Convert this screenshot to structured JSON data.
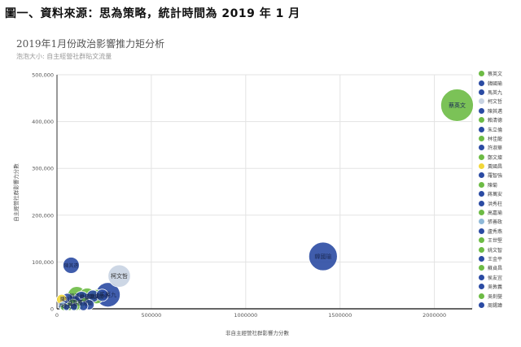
{
  "page_heading": "圖一、資料來源：思為策略，統計時間為 2019 年 1 月",
  "chart_data": {
    "type": "scatter",
    "title": "2019年1月份政治影響推力矩分析",
    "subtitle": "泡泡大小: 自主經營社群貼文流量",
    "xlabel": "非自主經營社群影響力分數",
    "ylabel": "自主經營社群影響力分數",
    "xlim": [
      0,
      2200000
    ],
    "ylim": [
      0,
      500000
    ],
    "xticks": [
      0,
      500000,
      1000000,
      1500000,
      2000000
    ],
    "xtick_labels": [
      "0",
      "500000",
      "1000000",
      "1500000",
      "2000000"
    ],
    "yticks": [
      0,
      100000,
      200000,
      300000,
      400000,
      500000
    ],
    "ytick_labels": [
      "0",
      "100,000",
      "200,000",
      "300,000",
      "400,000",
      "500,000"
    ],
    "grid": true,
    "legend_position": "right",
    "series": [
      {
        "name": "蔡英文",
        "color": "#6dbb45",
        "x": 2120000,
        "y": 435000,
        "size": 32,
        "label": "蔡英文"
      },
      {
        "name": "韓國瑜",
        "color": "#2b4ba3",
        "x": 1410000,
        "y": 112000,
        "size": 28,
        "label": "韓國瑜"
      },
      {
        "name": "馬英九",
        "color": "#2b4ba3",
        "x": 270000,
        "y": 30000,
        "size": 24,
        "label": "馬英九"
      },
      {
        "name": "柯文哲",
        "color": "#c8d3e2",
        "x": 330000,
        "y": 70000,
        "size": 22,
        "label": "柯文哲"
      },
      {
        "name": "陳其邁",
        "color": "#2b4ba3",
        "x": 75000,
        "y": 93000,
        "size": 16,
        "label": "陳其邁"
      },
      {
        "name": "賴清德",
        "color": "#6dbb45",
        "x": 105000,
        "y": 28000,
        "size": 18,
        "label": "賴清德"
      },
      {
        "name": "朱立倫",
        "color": "#2b4ba3",
        "x": 130000,
        "y": 22000,
        "size": 14,
        "label": "朱立倫"
      },
      {
        "name": "林佳龍",
        "color": "#6dbb45",
        "x": 160000,
        "y": 27000,
        "size": 16,
        "label": "林佳龍"
      },
      {
        "name": "許淑華",
        "color": "#2b4ba3",
        "x": 95000,
        "y": 15000,
        "size": 12,
        "label": "許淑華"
      },
      {
        "name": "鄭文燦",
        "color": "#6dbb45",
        "x": 210000,
        "y": 26000,
        "size": 14,
        "label": "鄭文燦"
      },
      {
        "name": "黃國昌",
        "color": "#f2d73a",
        "x": 25000,
        "y": 20000,
        "size": 10,
        "label": ""
      },
      {
        "name": "羅智強",
        "color": "#2b4ba3",
        "x": 55000,
        "y": 21000,
        "size": 11,
        "label": "羅智強"
      },
      {
        "name": "陳菊",
        "color": "#6dbb45",
        "x": 85000,
        "y": 10000,
        "size": 10,
        "label": "陳菊"
      },
      {
        "name": "蔣萬安",
        "color": "#2b4ba3",
        "x": 190000,
        "y": 27000,
        "size": 12,
        "label": "蔣萬安"
      },
      {
        "name": "洪秀柱",
        "color": "#2b4ba3",
        "x": 45000,
        "y": 8000,
        "size": 9,
        "label": "洪秀柱"
      },
      {
        "name": "高嘉瑜",
        "color": "#6dbb45",
        "x": 150000,
        "y": 12000,
        "size": 11,
        "label": "高嘉瑜"
      },
      {
        "name": "張善政",
        "color": "#8fb9d8",
        "x": 30000,
        "y": 6000,
        "size": 8,
        "label": ""
      },
      {
        "name": "盧秀燕",
        "color": "#2b4ba3",
        "x": 240000,
        "y": 29000,
        "size": 12,
        "label": "盧秀燕"
      },
      {
        "name": "王世堅",
        "color": "#6dbb45",
        "x": 120000,
        "y": 7000,
        "size": 9,
        "label": ""
      },
      {
        "name": "姚文智",
        "color": "#6dbb45",
        "x": 65000,
        "y": 5000,
        "size": 8,
        "label": "姚文智"
      },
      {
        "name": "王金平",
        "color": "#2b4ba3",
        "x": 140000,
        "y": 6000,
        "size": 9,
        "label": ""
      },
      {
        "name": "蘇貞昌",
        "color": "#6dbb45",
        "x": 100000,
        "y": 5000,
        "size": 8,
        "label": ""
      },
      {
        "name": "侯友宜",
        "color": "#2b4ba3",
        "x": 170000,
        "y": 9000,
        "size": 10,
        "label": ""
      },
      {
        "name": "吳敦義",
        "color": "#2b4ba3",
        "x": 90000,
        "y": 4000,
        "size": 7,
        "label": ""
      },
      {
        "name": "吳釗燮",
        "color": "#6dbb45",
        "x": 35000,
        "y": 3000,
        "size": 6,
        "label": ""
      },
      {
        "name": "周錫瑋",
        "color": "#2b4ba3",
        "x": 50000,
        "y": 3000,
        "size": 6,
        "label": ""
      }
    ]
  }
}
